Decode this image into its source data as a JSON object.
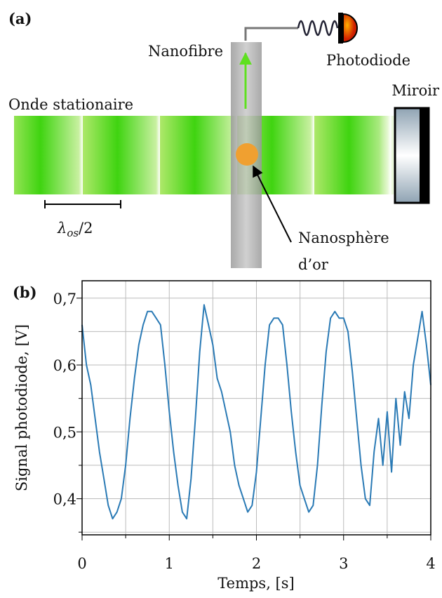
{
  "panel_a": {
    "label": "(a)",
    "nanofibre": "Nanofibre",
    "photodiode": "Photodiode",
    "miroir": "Miroir",
    "onde": "Onde stationaire",
    "lambda": {
      "symbol": "λ",
      "subscript": "os",
      "suffix": "/2"
    },
    "nanosphere": [
      "Nanosphère",
      "d’or"
    ]
  },
  "chart_data": {
    "type": "line",
    "panel_label": "(b)",
    "x_label": "Temps, [s]",
    "y_label": "Signal photodiode, [V]",
    "color": "#2a7ab5",
    "x": [
      0,
      0.05,
      0.1,
      0.15,
      0.2,
      0.25,
      0.3,
      0.35,
      0.4,
      0.45,
      0.5,
      0.55,
      0.6,
      0.65,
      0.7,
      0.75,
      0.8,
      0.85,
      0.9,
      0.95,
      1,
      1.05,
      1.1,
      1.15,
      1.2,
      1.25,
      1.3,
      1.35,
      1.4,
      1.45,
      1.5,
      1.55,
      1.6,
      1.65,
      1.7,
      1.75,
      1.8,
      1.85,
      1.9,
      1.95,
      2,
      2.05,
      2.1,
      2.15,
      2.2,
      2.25,
      2.3,
      2.35,
      2.4,
      2.45,
      2.5,
      2.55,
      2.6,
      2.65,
      2.7,
      2.75,
      2.8,
      2.85,
      2.9,
      2.95,
      3,
      3.05,
      3.1,
      3.15,
      3.2,
      3.25,
      3.3,
      3.35,
      3.4,
      3.45,
      3.5,
      3.55,
      3.6,
      3.65,
      3.7,
      3.75,
      3.8,
      3.85,
      3.9,
      3.95,
      4
    ],
    "values": [
      0.66,
      0.6,
      0.57,
      0.52,
      0.47,
      0.43,
      0.39,
      0.37,
      0.38,
      0.4,
      0.45,
      0.52,
      0.58,
      0.63,
      0.66,
      0.68,
      0.68,
      0.67,
      0.66,
      0.6,
      0.53,
      0.47,
      0.42,
      0.38,
      0.37,
      0.43,
      0.52,
      0.62,
      0.69,
      0.66,
      0.63,
      0.58,
      0.56,
      0.53,
      0.5,
      0.45,
      0.42,
      0.4,
      0.38,
      0.39,
      0.44,
      0.52,
      0.6,
      0.66,
      0.67,
      0.67,
      0.66,
      0.6,
      0.53,
      0.47,
      0.42,
      0.4,
      0.38,
      0.39,
      0.45,
      0.54,
      0.62,
      0.67,
      0.68,
      0.67,
      0.67,
      0.65,
      0.59,
      0.52,
      0.45,
      0.4,
      0.39,
      0.47,
      0.52,
      0.45,
      0.53,
      0.44,
      0.55,
      0.48,
      0.56,
      0.52,
      0.6,
      0.64,
      0.68,
      0.63,
      0.57
    ],
    "xlim": [
      0,
      4
    ],
    "xticks": [
      0,
      1,
      2,
      3,
      4
    ],
    "minor_xticks": [
      0.5,
      1.5,
      2.5,
      3.5
    ],
    "ylim": [
      0.346,
      0.726
    ],
    "yticks": [
      {
        "value": 0.4,
        "label": "0,4"
      },
      {
        "value": 0.5,
        "label": "0,5"
      },
      {
        "value": 0.6,
        "label": "0,6"
      },
      {
        "value": 0.7,
        "label": "0,7"
      }
    ],
    "minor_yticks": [
      0.35,
      0.45,
      0.55,
      0.65
    ],
    "grid": true
  }
}
